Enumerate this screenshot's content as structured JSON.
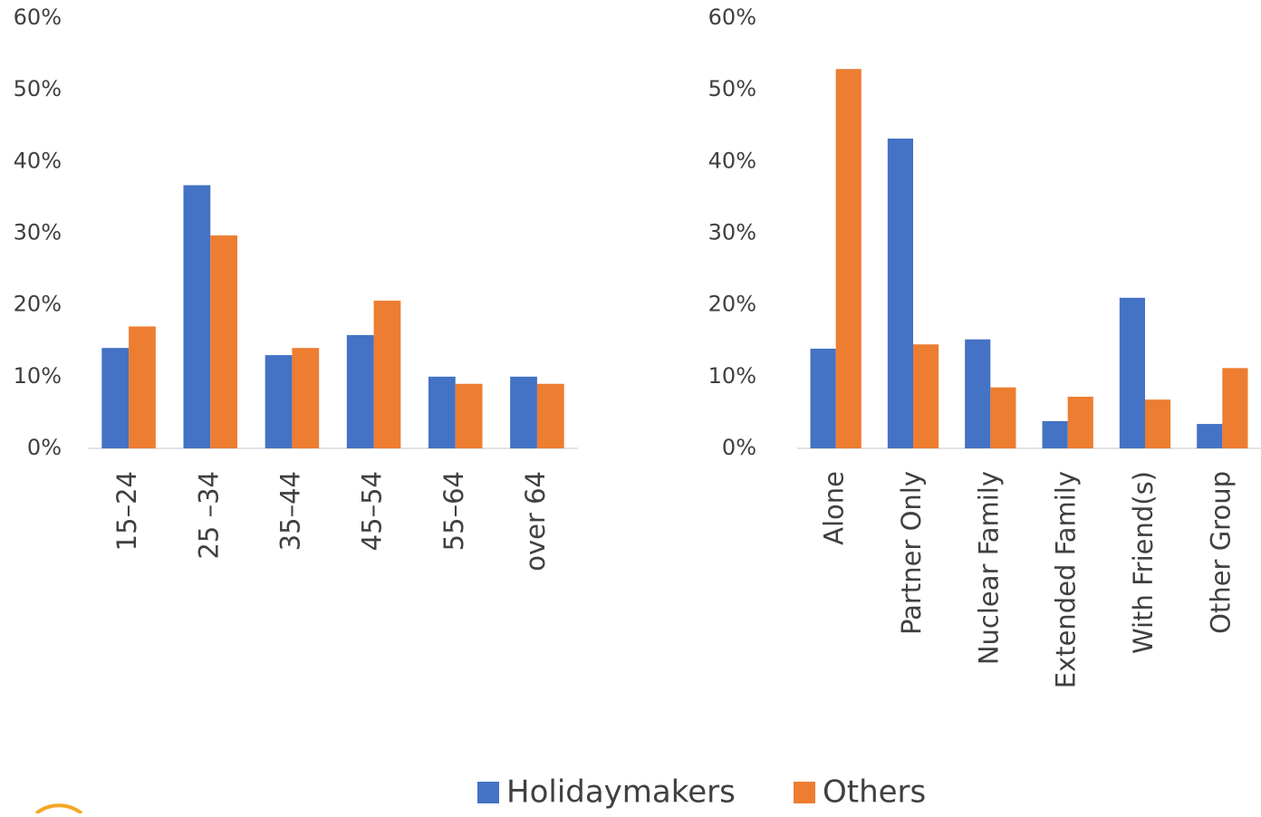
{
  "chart_data": [
    {
      "type": "bar",
      "categories": [
        "15–24",
        "25 –34",
        "35–44",
        "45–54",
        "55–64",
        "over 64"
      ],
      "series": [
        {
          "name": "Holidaymakers",
          "color": "#4472c4",
          "values": [
            14,
            36.7,
            13,
            15.8,
            10,
            10
          ]
        },
        {
          "name": "Others",
          "color": "#ed7d31",
          "values": [
            17,
            29.7,
            14,
            20.6,
            9,
            9
          ]
        }
      ],
      "ylim": [
        0,
        60
      ],
      "yticks": [
        {
          "value": 0,
          "label": "0%"
        },
        {
          "value": 10,
          "label": "10%"
        },
        {
          "value": 20,
          "label": "20%"
        },
        {
          "value": 30,
          "label": "30%"
        },
        {
          "value": 40,
          "label": "40%"
        },
        {
          "value": 50,
          "label": "50%"
        },
        {
          "value": 60,
          "label": "60%"
        }
      ]
    },
    {
      "type": "bar",
      "categories": [
        "Alone",
        "Partner Only",
        "Nuclear Family",
        "Extended Family",
        "With Friend(s)",
        "Other Group"
      ],
      "series": [
        {
          "color": "#4472c4",
          "values": [
            13.9,
            43.2,
            15.2,
            3.8,
            21,
            3.4
          ]
        },
        {
          "color": "#ed7d31",
          "values": [
            52.9,
            14.5,
            8.5,
            7.2,
            6.8,
            11.2
          ]
        }
      ],
      "ylim": [
        0,
        60
      ],
      "yticks": [
        {
          "value": 0,
          "label": "0%"
        },
        {
          "value": 10,
          "label": "10%"
        },
        {
          "value": 20,
          "label": "20%"
        },
        {
          "value": 30,
          "label": "30%"
        },
        {
          "value": 40,
          "label": "40%"
        },
        {
          "value": 50,
          "label": "50%"
        },
        {
          "value": 60,
          "label": "60%"
        }
      ]
    }
  ]
}
